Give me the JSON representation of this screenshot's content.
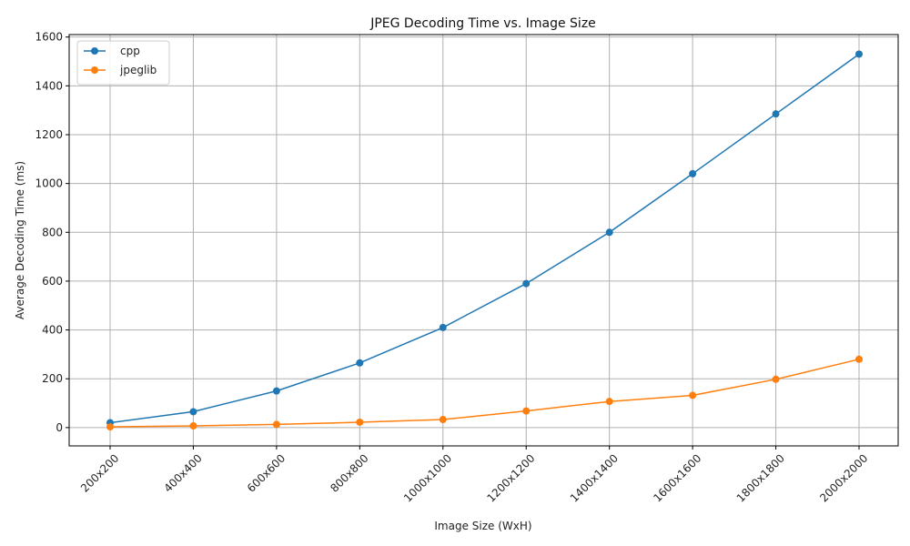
{
  "chart_data": {
    "type": "line",
    "title": "JPEG Decoding Time vs. Image Size",
    "xlabel": "Image Size (WxH)",
    "ylabel": "Average Decoding Time (ms)",
    "categories": [
      "200x200",
      "400x400",
      "600x600",
      "800x800",
      "1000x1000",
      "1200x1200",
      "1400x1400",
      "1600x1600",
      "1800x1800",
      "2000x2000"
    ],
    "ylim": [
      -75,
      1610
    ],
    "yticks": [
      0,
      200,
      400,
      600,
      800,
      1000,
      1200,
      1400,
      1600
    ],
    "grid": true,
    "legend_position": "top-left",
    "series": [
      {
        "name": "cpp",
        "color": "#1f77b4",
        "values": [
          20,
          65,
          150,
          265,
          410,
          590,
          800,
          1040,
          1285,
          1530
        ]
      },
      {
        "name": "jpeglib",
        "color": "#ff7f0e",
        "values": [
          3,
          7,
          13,
          22,
          33,
          68,
          107,
          132,
          198,
          280
        ]
      }
    ]
  }
}
